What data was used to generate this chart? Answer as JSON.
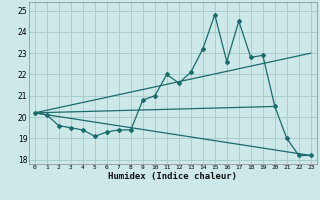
{
  "xlabel": "Humidex (Indice chaleur)",
  "ylabel": "",
  "xlim": [
    -0.5,
    23.5
  ],
  "ylim": [
    17.8,
    25.4
  ],
  "yticks": [
    18,
    19,
    20,
    21,
    22,
    23,
    24,
    25
  ],
  "xticks": [
    0,
    1,
    2,
    3,
    4,
    5,
    6,
    7,
    8,
    9,
    10,
    11,
    12,
    13,
    14,
    15,
    16,
    17,
    18,
    19,
    20,
    21,
    22,
    23
  ],
  "bg_color": "#cce8e8",
  "grid_color": "#aacccc",
  "line_color": "#1a6b6b",
  "series": [
    {
      "x": [
        0,
        1,
        2,
        3,
        4,
        5,
        6,
        7,
        8,
        9,
        10,
        11,
        12,
        13,
        14,
        15,
        16,
        17,
        18,
        19,
        20,
        21,
        22,
        23
      ],
      "y": [
        20.2,
        20.1,
        19.6,
        19.5,
        19.4,
        19.1,
        19.3,
        19.4,
        19.4,
        20.8,
        21.0,
        22.0,
        21.6,
        22.1,
        23.2,
        24.8,
        22.6,
        24.5,
        22.8,
        22.9,
        20.5,
        19.0,
        18.2,
        18.2
      ],
      "marker": true
    },
    {
      "x": [
        0,
        23
      ],
      "y": [
        20.2,
        23.0
      ],
      "marker": false
    },
    {
      "x": [
        0,
        23
      ],
      "y": [
        20.2,
        18.2
      ],
      "marker": false
    },
    {
      "x": [
        0,
        20
      ],
      "y": [
        20.2,
        20.5
      ],
      "marker": false
    }
  ]
}
